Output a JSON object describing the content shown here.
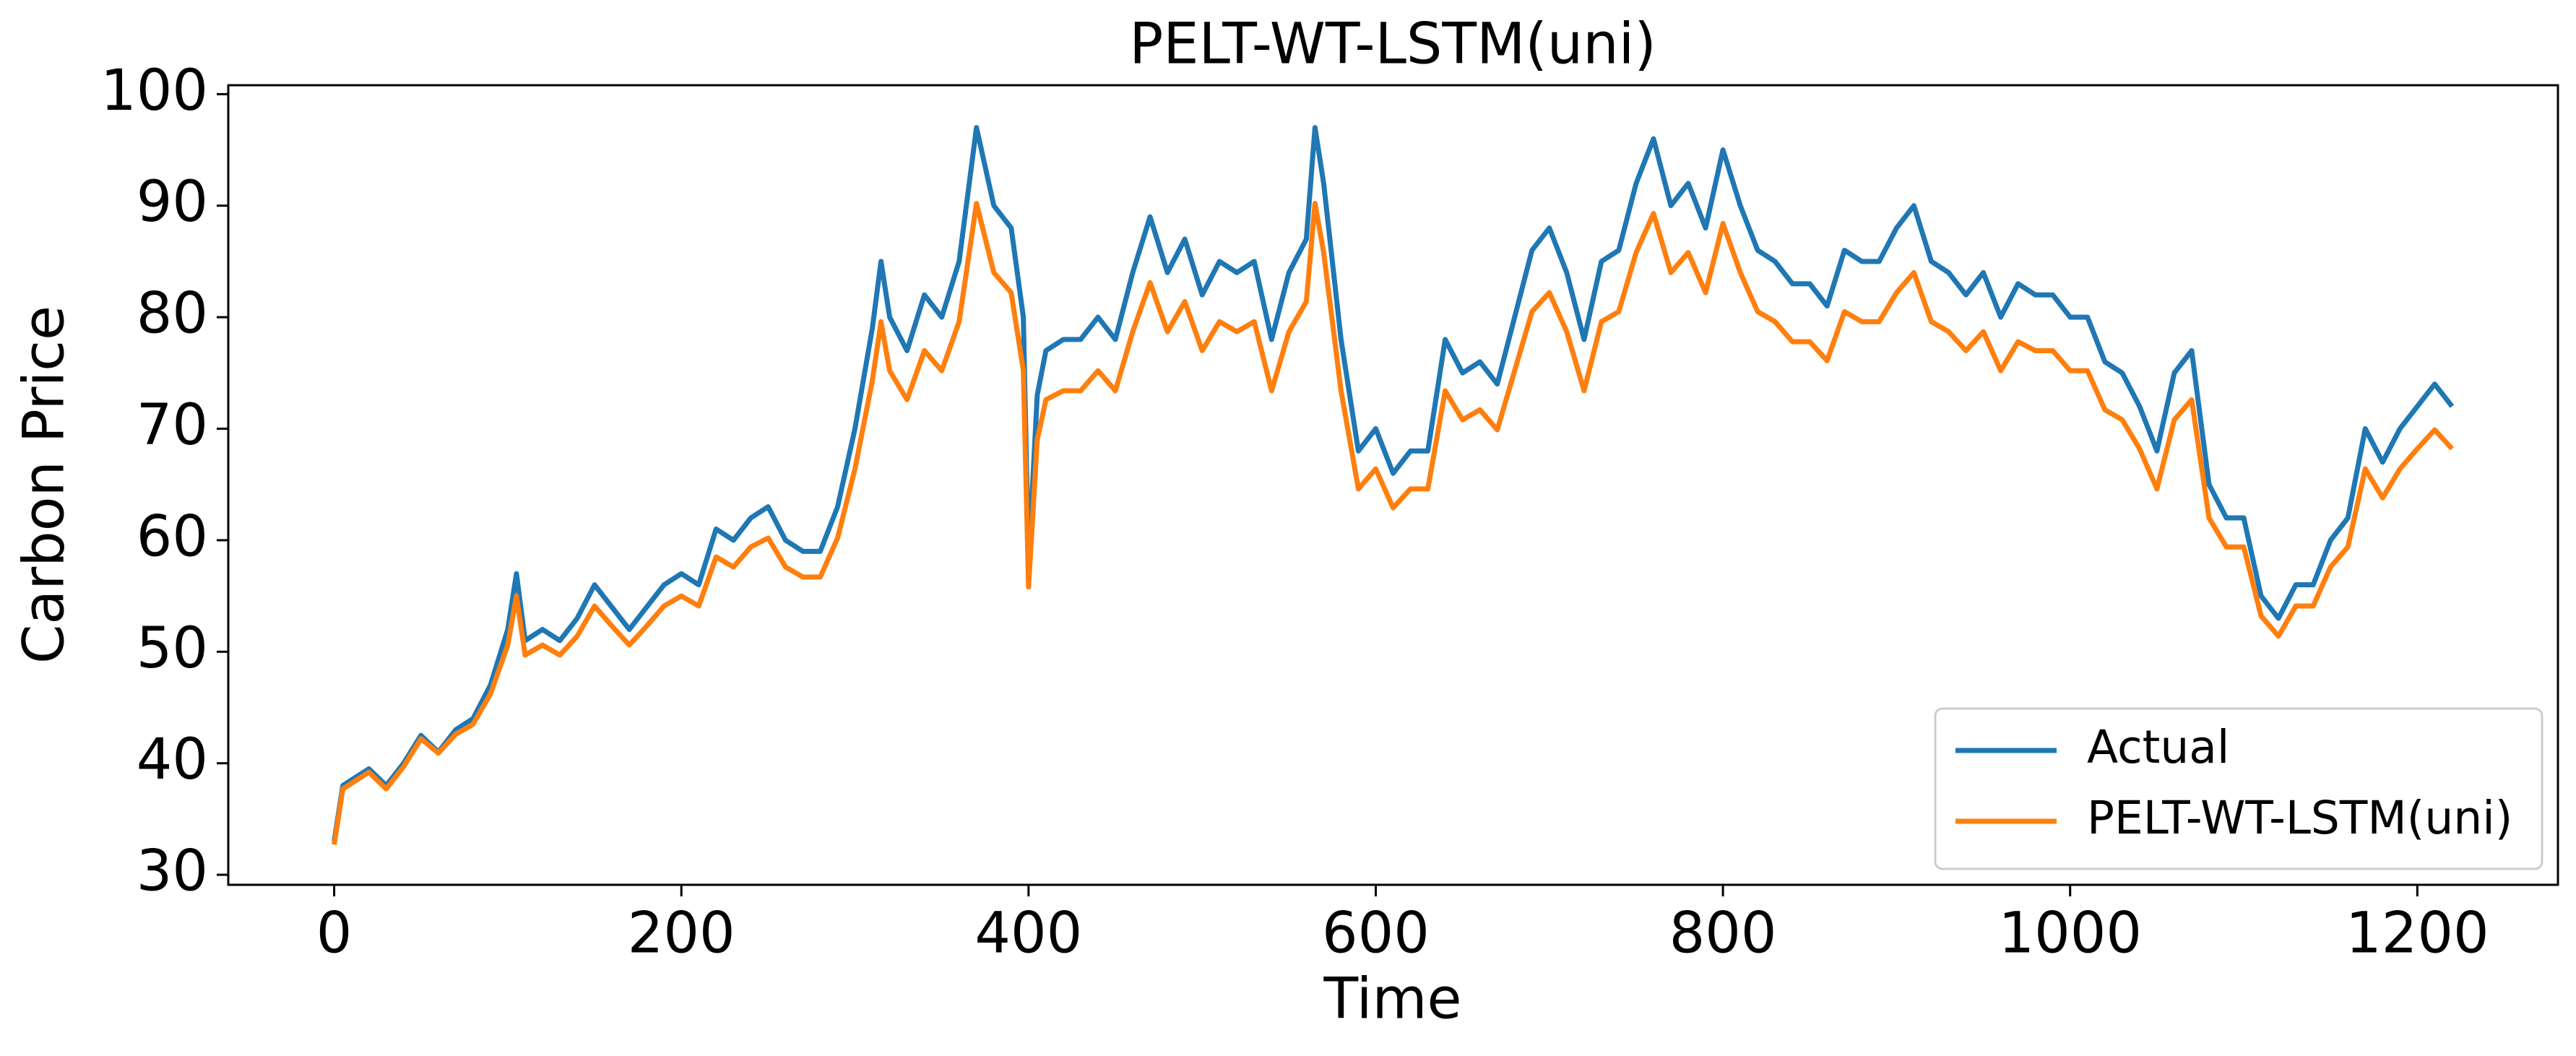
{
  "chart_data": {
    "type": "line",
    "title": "PELT-WT-LSTM(uni)",
    "x_label": "Time",
    "y_label": "Carbon Price",
    "x": [
      0,
      5,
      10,
      20,
      30,
      40,
      50,
      60,
      70,
      80,
      90,
      100,
      105,
      110,
      120,
      130,
      140,
      150,
      160,
      170,
      180,
      190,
      200,
      210,
      220,
      230,
      240,
      250,
      260,
      270,
      280,
      290,
      300,
      310,
      315,
      320,
      330,
      340,
      350,
      360,
      370,
      380,
      390,
      397,
      400,
      405,
      410,
      420,
      430,
      440,
      450,
      460,
      470,
      480,
      490,
      500,
      510,
      520,
      530,
      540,
      550,
      560,
      565,
      570,
      580,
      590,
      600,
      610,
      620,
      630,
      640,
      650,
      660,
      670,
      680,
      690,
      700,
      710,
      720,
      730,
      740,
      750,
      760,
      770,
      780,
      790,
      800,
      810,
      820,
      830,
      840,
      850,
      860,
      870,
      880,
      890,
      900,
      910,
      920,
      930,
      940,
      950,
      960,
      970,
      980,
      990,
      1000,
      1010,
      1020,
      1030,
      1040,
      1050,
      1060,
      1070,
      1080,
      1090,
      1100,
      1110,
      1120,
      1130,
      1140,
      1150,
      1160,
      1170,
      1180,
      1190,
      1200,
      1210,
      1220
    ],
    "series": [
      {
        "name": "Actual",
        "color": "#1f77b4",
        "values": [
          33,
          38,
          38.5,
          39.5,
          38,
          40,
          42.5,
          41,
          43,
          44,
          47,
          52,
          57,
          51,
          52,
          51,
          53,
          56,
          54,
          52,
          54,
          56,
          57,
          56,
          61,
          60,
          62,
          63,
          60,
          59,
          59,
          63,
          70,
          79,
          85,
          80,
          77,
          82,
          80,
          85,
          97,
          90,
          88,
          80,
          58,
          73,
          77,
          78,
          78,
          80,
          78,
          84,
          89,
          84,
          87,
          82,
          85,
          84,
          85,
          78,
          84,
          87,
          97,
          92,
          78,
          68,
          70,
          66,
          68,
          68,
          78,
          75,
          76,
          74,
          80,
          86,
          88,
          84,
          78,
          85,
          86,
          92,
          96,
          90,
          92,
          88,
          95,
          90,
          86,
          85,
          83,
          83,
          81,
          86,
          85,
          85,
          88,
          90,
          85,
          84,
          82,
          84,
          80,
          83,
          82,
          82,
          80,
          80,
          76,
          75,
          72,
          68,
          75,
          77,
          65,
          62,
          62,
          55,
          53,
          56,
          56,
          60,
          62,
          70,
          67,
          70,
          72,
          74,
          72
        ]
      },
      {
        "name": "PELT-WT-LSTM(uni)",
        "color": "#ff7f0e",
        "values": [
          32.7,
          37.7,
          38.2,
          39.2,
          37.7,
          39.7,
          42.2,
          40.9,
          42.6,
          43.5,
          46.2,
          50.6,
          55,
          49.7,
          50.6,
          49.7,
          51.4,
          54.1,
          52.3,
          50.6,
          52.3,
          54.1,
          55,
          54.1,
          58.5,
          57.6,
          59.4,
          60.2,
          57.6,
          56.7,
          56.7,
          60.2,
          66.4,
          74.3,
          79.6,
          75.2,
          72.6,
          77,
          75.2,
          79.6,
          90.2,
          84,
          82.2,
          75.2,
          55.8,
          69,
          72.6,
          73.4,
          73.4,
          75.2,
          73.4,
          78.7,
          83.1,
          78.7,
          81.4,
          77,
          79.6,
          78.7,
          79.6,
          73.4,
          78.7,
          81.4,
          90.2,
          85.8,
          73.4,
          64.6,
          66.4,
          62.9,
          64.6,
          64.6,
          73.4,
          70.8,
          71.7,
          69.9,
          75.2,
          80.5,
          82.2,
          78.7,
          73.4,
          79.6,
          80.5,
          85.8,
          89.3,
          84,
          85.8,
          82.2,
          88.4,
          84,
          80.5,
          79.6,
          77.8,
          77.8,
          76.1,
          80.5,
          79.6,
          79.6,
          82.2,
          84,
          79.6,
          78.7,
          77,
          78.7,
          75.2,
          77.8,
          77,
          77,
          75.2,
          75.2,
          71.7,
          70.8,
          68.2,
          64.6,
          70.8,
          72.6,
          62,
          59.4,
          59.4,
          53.2,
          51.4,
          54.1,
          54.1,
          57.6,
          59.4,
          66.4,
          63.8,
          66.4,
          68.2,
          69.9,
          68.2
        ]
      }
    ],
    "xlim": [
      -61,
      1281
    ],
    "ylim": [
      29.1,
      100.8
    ],
    "xticks": [
      0,
      200,
      400,
      600,
      800,
      1000,
      1200
    ],
    "yticks": [
      30,
      40,
      50,
      60,
      70,
      80,
      90,
      100
    ],
    "legend": "lower right"
  }
}
